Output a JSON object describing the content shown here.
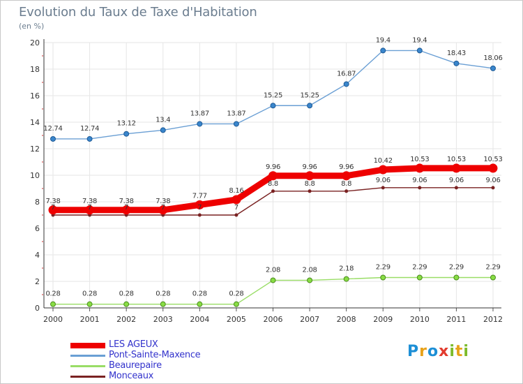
{
  "chart_data": {
    "type": "line",
    "title": "Evolution du Taux de Taxe d'Habitation",
    "ylabel": "(en %)",
    "x": [
      "2000",
      "2001",
      "2002",
      "2003",
      "2004",
      "2005",
      "2006",
      "2007",
      "2008",
      "2009",
      "2010",
      "2011",
      "2012"
    ],
    "ylim": [
      0,
      20
    ],
    "yticks": [
      "0",
      "2",
      "4",
      "6",
      "8",
      "10",
      "12",
      "14",
      "16",
      "18",
      "20"
    ],
    "grid": true,
    "legend_position": "bottom-left",
    "series": [
      {
        "name": "LES AGEUX",
        "color": "#ee0000",
        "values": [
          7.38,
          7.38,
          7.38,
          7.38,
          7.77,
          8.16,
          9.96,
          9.96,
          9.96,
          10.42,
          10.53,
          10.53,
          10.53
        ],
        "labels": [
          "7.38",
          "7.38",
          "7.38",
          "7.38",
          "7.77",
          "8.16",
          "9.96",
          "9.96",
          "9.96",
          "10.42",
          "10.53",
          "10.53",
          "10.53"
        ]
      },
      {
        "name": "Pont-Sainte-Maxence",
        "color": "#6a9fd4",
        "values": [
          12.74,
          12.74,
          13.12,
          13.4,
          13.87,
          13.87,
          15.25,
          15.25,
          16.87,
          19.4,
          19.4,
          18.43,
          18.06
        ],
        "labels": [
          "12.74",
          "12.74",
          "13.12",
          "13.4",
          "13.87",
          "13.87",
          "15.25",
          "15.25",
          "16.87",
          "19.4",
          "19.4",
          "18.43",
          "18.06"
        ]
      },
      {
        "name": "Beaurepaire",
        "color": "#99dd66",
        "values": [
          0.28,
          0.28,
          0.28,
          0.28,
          0.28,
          0.28,
          2.08,
          2.08,
          2.18,
          2.29,
          2.29,
          2.29,
          2.29
        ],
        "labels": [
          "0.28",
          "0.28",
          "0.28",
          "0.28",
          "0.28",
          "0.28",
          "2.08",
          "2.08",
          "2.18",
          "2.29",
          "2.29",
          "2.29",
          "2.29"
        ]
      },
      {
        "name": "Monceaux",
        "color": "#7a2222",
        "values": [
          7,
          7,
          7,
          7,
          7,
          7,
          8.8,
          8.8,
          8.8,
          9.06,
          9.06,
          9.06,
          9.06
        ],
        "labels": [
          "7",
          "7",
          "7",
          "7",
          "7",
          "7",
          "8.8",
          "8.8",
          "8.8",
          "9.06",
          "9.06",
          "9.06",
          "9.06"
        ]
      }
    ]
  },
  "logo": {
    "text": "Proxiti"
  }
}
